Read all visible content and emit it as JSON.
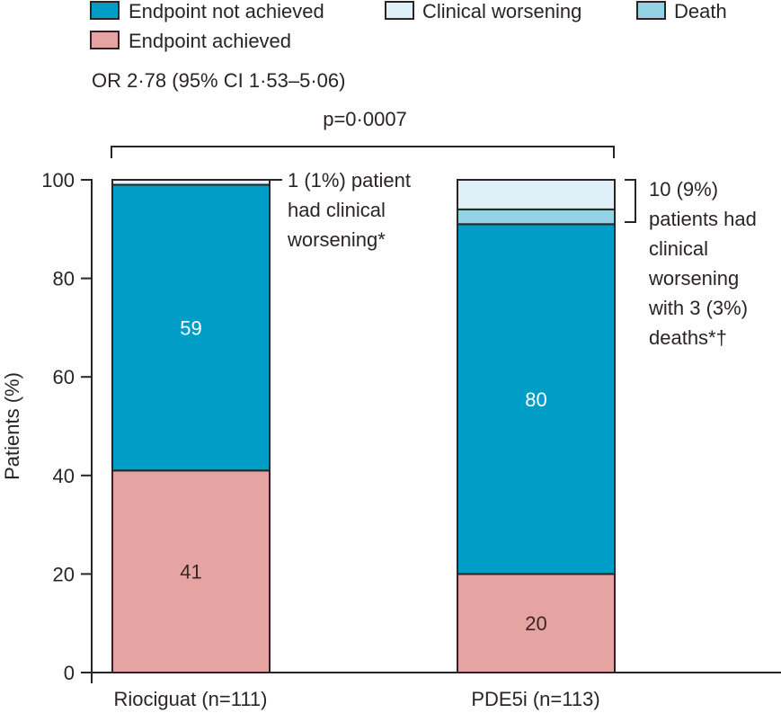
{
  "chart_data": {
    "type": "bar",
    "stacked": true,
    "title": "",
    "xlabel": "",
    "ylabel": "Patients (%)",
    "ylim": [
      0,
      100
    ],
    "yticks": [
      0,
      20,
      40,
      60,
      80,
      100
    ],
    "grid": false,
    "categories": [
      "Riociguat (n=111)",
      "PDE5i (n=113)"
    ],
    "legend": {
      "placement": "top-left",
      "entries": [
        {
          "name": "Endpoint not achieved",
          "color": "#009ec6"
        },
        {
          "name": "Clinical worsening",
          "color": "#dff0f8"
        },
        {
          "name": "Death",
          "color": "#96d2e6"
        },
        {
          "name": "Endpoint achieved",
          "color": "#e5a4a2"
        }
      ]
    },
    "series": [
      {
        "name": "Endpoint achieved",
        "color": "#e5a4a2",
        "values": [
          41,
          20
        ],
        "labels": [
          "41",
          "20"
        ]
      },
      {
        "name": "Endpoint not achieved",
        "color": "#009ec6",
        "values": [
          58,
          71
        ],
        "labels": [
          "59",
          "80"
        ]
      },
      {
        "name": "Death",
        "color": "#96d2e6",
        "values": [
          0,
          3
        ],
        "labels": [
          "",
          ""
        ]
      },
      {
        "name": "Clinical worsening",
        "color": "#dff0f8",
        "values": [
          1,
          6
        ],
        "labels": [
          "",
          ""
        ]
      }
    ],
    "annotations": {
      "odds_ratio": "OR 2·78 (95% CI 1·53–5·06)",
      "p_value": "p=0·0007",
      "riociguat_note": [
        "1 (1%) patient",
        "had clinical",
        "worsening*"
      ],
      "pde5i_note": [
        "10 (9%)",
        "patients had",
        "clinical",
        "worsening",
        "with 3 (3%)",
        "deaths*†"
      ]
    }
  }
}
